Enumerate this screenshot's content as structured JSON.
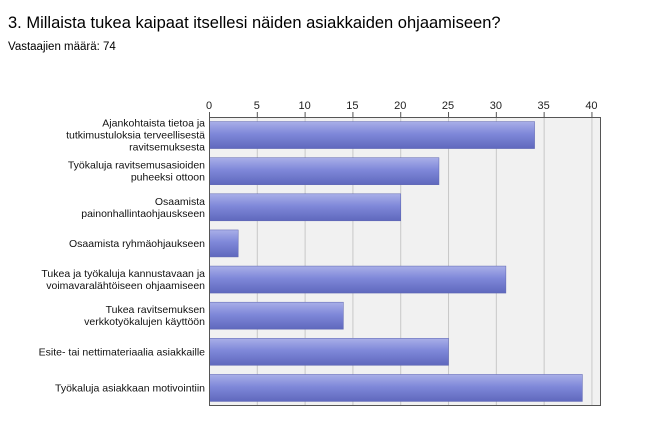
{
  "page": {
    "title": "3. Millaista tukea kaipaat itsellesi näiden asiakkaiden ohjaamiseen?",
    "respondents": "Vastaajien määrä: 74"
  },
  "chart_data": {
    "type": "bar",
    "orientation": "horizontal",
    "categories": [
      [
        "Ajankohtaista tietoa ja",
        "tutkimustuloksia terveellisestä",
        "ravitsemuksesta"
      ],
      [
        "Työkaluja ravitsemusasioiden",
        "puheeksi ottoon"
      ],
      [
        "Osaamista",
        "painonhallintaohjauskseen"
      ],
      [
        "Osaamista ryhmäohjaukseen"
      ],
      [
        "Tukea ja työkaluja kannustavaan ja",
        "voimavaralähtöiseen ohjaamiseen"
      ],
      [
        "Tukea ravitsemuksen",
        "verkkotyökalujen käyttöön"
      ],
      [
        "Esite- tai nettimateriaalia asiakkaille"
      ],
      [
        "Työkaluja asiakkaan motivointiin"
      ]
    ],
    "values": [
      34,
      24,
      20,
      3,
      31,
      14,
      25,
      39
    ],
    "xlim": [
      0,
      41
    ],
    "ticks": [
      0,
      5,
      10,
      15,
      20,
      25,
      30,
      35,
      40
    ],
    "tick_labels": [
      "0",
      "5",
      "10",
      "15",
      "20",
      "25",
      "30",
      "35",
      "40"
    ],
    "axis_position": "top",
    "grid": true,
    "legend": "none",
    "colors": {
      "bar_top": "#a9afe8",
      "bar_mid": "#7f88d9",
      "bar_bottom": "#5f68bd",
      "grid": "#c8c8c8",
      "plot_bg": "#f1f1f1",
      "frame": "#555555"
    }
  }
}
